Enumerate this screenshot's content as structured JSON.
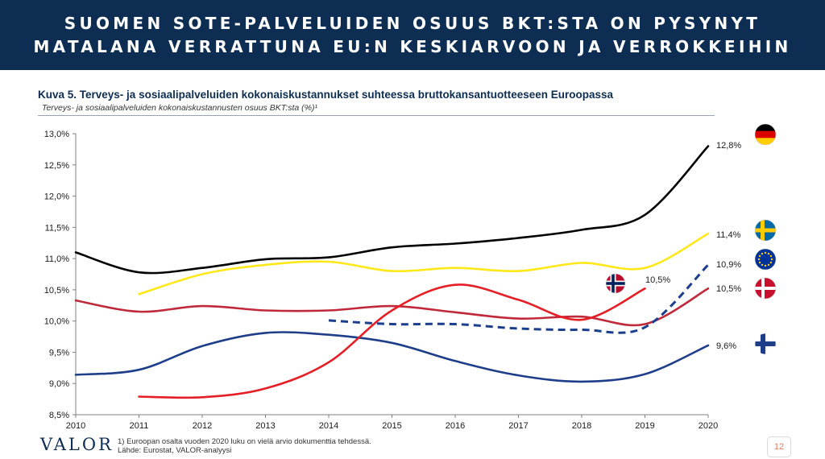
{
  "header": {
    "line1": "SUOMEN SOTE-PALVELUIDEN OSUUS BKT:STA ON PYSYNYT",
    "line2": "MATALANA VERRATTUNA EU:N KESKIARVOON JA VERROKKEIHIN"
  },
  "figure": {
    "title": "Kuva 5. Terveys- ja sosiaalipalveluiden kokonaiskustannukset suhteessa bruttokansantuotteeseen Euroopassa",
    "subtitle": "Terveys- ja sosiaalipalveluiden kokonaiskustannusten osuus BKT:sta (%)¹"
  },
  "footer": {
    "logo": "VALOR",
    "note1": "1) Euroopan osalta vuoden 2020 luku on vielä arvio dokumenttia tehdessä.",
    "note2": "Lähde: Eurostat, VALOR-analyysi",
    "page_number": "12"
  },
  "chart_data": {
    "type": "line",
    "title": "Kuva 5. Terveys- ja sosiaalipalveluiden kokonaiskustannukset suhteessa bruttokansantuotteeseen Euroopassa",
    "subtitle": "Terveys- ja sosiaalipalveluiden kokonaiskustannusten osuus BKT:sta (%)¹",
    "xlabel": "",
    "ylabel": "",
    "x": [
      2010,
      2011,
      2012,
      2013,
      2014,
      2015,
      2016,
      2017,
      2018,
      2019,
      2020
    ],
    "xlim": [
      2010,
      2020
    ],
    "ylim": [
      8.5,
      13.0
    ],
    "yticks": [
      8.5,
      9.0,
      9.5,
      10.0,
      10.5,
      11.0,
      11.5,
      12.0,
      12.5,
      13.0
    ],
    "ytick_labels": [
      "8,5%",
      "9,0%",
      "9,5%",
      "10,0%",
      "10,5%",
      "11,0%",
      "11,5%",
      "12,0%",
      "12,5%",
      "13,0%"
    ],
    "xtick_labels": [
      "2010",
      "2011",
      "2012",
      "2013",
      "2014",
      "2015",
      "2016",
      "2017",
      "2018",
      "2019",
      "2020"
    ],
    "grid": false,
    "series": [
      {
        "flag": "germany-flag-icon",
        "color": "#000000",
        "dashed": false,
        "end_label": "12,8%",
        "values": [
          11.1,
          10.78,
          10.85,
          10.99,
          11.02,
          11.18,
          11.24,
          11.33,
          11.46,
          11.7,
          12.8
        ]
      },
      {
        "flag": "sweden-flag-icon",
        "color": "#ffe81a",
        "dashed": false,
        "end_label": "11,4%",
        "values": [
          null,
          10.43,
          10.75,
          10.9,
          10.95,
          10.8,
          10.85,
          10.8,
          10.93,
          10.85,
          11.4
        ]
      },
      {
        "flag": "eu-flag-icon",
        "color": "#1b3f8c",
        "dashed": true,
        "end_label": "10,9%",
        "values": [
          null,
          null,
          null,
          null,
          10.01,
          9.95,
          9.95,
          9.88,
          9.86,
          9.9,
          10.9
        ]
      },
      {
        "flag": "denmark-flag-icon",
        "color": "#c0293a",
        "dashed": false,
        "end_label": "10,5%",
        "values": [
          10.33,
          10.15,
          10.24,
          10.17,
          10.17,
          10.24,
          10.14,
          10.04,
          10.07,
          9.95,
          10.52
        ]
      },
      {
        "flag": "finland-flag-icon",
        "color": "#1f3e8a",
        "dashed": false,
        "end_label": "9,6%",
        "values": [
          9.14,
          9.22,
          9.6,
          9.81,
          9.78,
          9.65,
          9.36,
          9.13,
          9.03,
          9.15,
          9.61
        ]
      },
      {
        "flag": "norway-flag-icon",
        "color": "#e41f26",
        "dashed": false,
        "end_label": "10,5%",
        "x": [
          2011,
          2012,
          2013,
          2014,
          2015,
          2016,
          2017,
          2018,
          2019
        ],
        "values": [
          8.79,
          8.78,
          8.92,
          9.34,
          10.17,
          10.58,
          10.34,
          10.02,
          10.52
        ]
      }
    ],
    "colors": {
      "title": "#0d2d52",
      "header_bg": "#0d2d52"
    }
  }
}
